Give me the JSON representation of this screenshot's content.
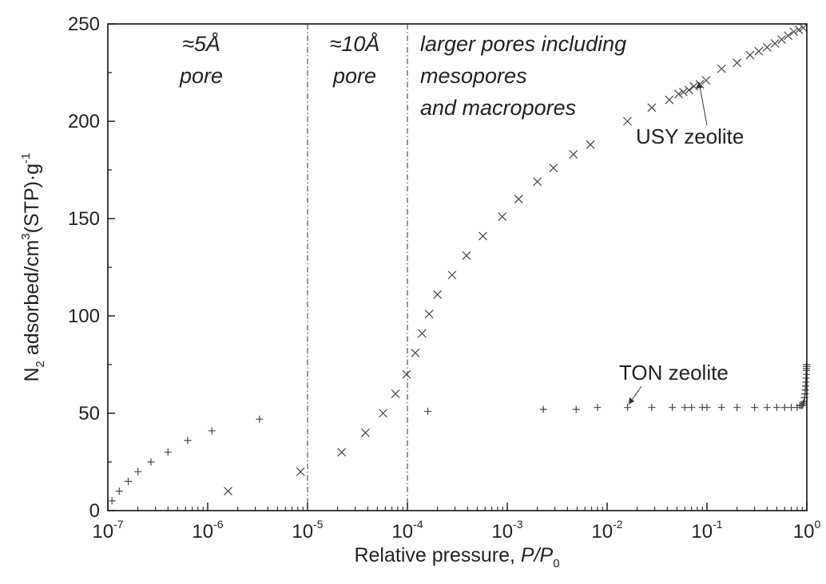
{
  "chart_data": {
    "type": "scatter",
    "title": "",
    "xlabel": "Relative pressure, P/P0",
    "xlabel_parts": [
      "Relative pressure, ",
      "P/P",
      "0"
    ],
    "ylabel_parts": [
      "N",
      "2",
      " adsorbed/cm",
      "3",
      "(STP)·g",
      "-1"
    ],
    "x_scale": "log",
    "xlim": [
      1e-07,
      1
    ],
    "ylim": [
      0,
      250
    ],
    "grid": false,
    "x_ticks": [
      {
        "base": "10",
        "exp": "-7",
        "value": 1e-07
      },
      {
        "base": "10",
        "exp": "-6",
        "value": 1e-06
      },
      {
        "base": "10",
        "exp": "-5",
        "value": 1e-05
      },
      {
        "base": "10",
        "exp": "-4",
        "value": 0.0001
      },
      {
        "base": "10",
        "exp": "-3",
        "value": 0.001
      },
      {
        "base": "10",
        "exp": "-2",
        "value": 0.01
      },
      {
        "base": "10",
        "exp": "-1",
        "value": 0.1
      },
      {
        "base": "10",
        "exp": "0",
        "value": 1
      }
    ],
    "y_ticks": [
      {
        "label": "0",
        "value": 0
      },
      {
        "label": "50",
        "value": 50
      },
      {
        "label": "100",
        "value": 100
      },
      {
        "label": "150",
        "value": 150
      },
      {
        "label": "200",
        "value": 200
      },
      {
        "label": "250",
        "value": 250
      }
    ],
    "vlines": [
      1e-05,
      0.0001
    ],
    "region_labels": [
      {
        "lines": [
          "≈5Å",
          "pore"
        ]
      },
      {
        "lines": [
          "≈10Å",
          "pore"
        ]
      },
      {
        "lines": [
          "larger pores including",
          "mesopores",
          "and macropores"
        ]
      }
    ],
    "series": [
      {
        "name": "USY zeolite",
        "marker": "x",
        "x": [
          1.6e-06,
          8.5e-06,
          2.2e-05,
          3.8e-05,
          5.7e-05,
          7.6e-05,
          9.8e-05,
          0.00012,
          0.00014,
          0.000165,
          0.0002,
          0.00028,
          0.00039,
          0.00057,
          0.00089,
          0.0013,
          0.002,
          0.0029,
          0.0046,
          0.0068,
          0.016,
          0.028,
          0.042,
          0.052,
          0.058,
          0.066,
          0.074,
          0.085,
          0.098,
          0.14,
          0.2,
          0.27,
          0.33,
          0.4,
          0.48,
          0.56,
          0.65,
          0.74,
          0.83,
          0.92
        ],
        "y": [
          10,
          20,
          30,
          40,
          50,
          60,
          70,
          81,
          91,
          101,
          111,
          121,
          131,
          141,
          151,
          160,
          169,
          176,
          183,
          188,
          200,
          207,
          211,
          214,
          215,
          216,
          218,
          219,
          221,
          227,
          230,
          234,
          236,
          238,
          240,
          242,
          244,
          246,
          247,
          248
        ]
      },
      {
        "name": "TON zeolite",
        "marker": "+",
        "x": [
          1.1e-07,
          1.3e-07,
          1.6e-07,
          2e-07,
          2.7e-07,
          4e-07,
          6.3e-07,
          1.1e-06,
          3.3e-06,
          0.00016,
          0.0023,
          0.0049,
          0.008,
          0.016,
          0.028,
          0.045,
          0.06,
          0.07,
          0.09,
          0.1,
          0.14,
          0.2,
          0.3,
          0.4,
          0.5,
          0.6,
          0.7,
          0.8,
          0.85,
          0.88,
          0.9,
          0.92,
          0.94,
          0.95,
          0.96,
          0.965,
          0.97,
          0.975,
          0.98,
          0.985,
          0.99,
          0.993,
          0.996,
          0.998
        ],
        "y": [
          5,
          10,
          15,
          20,
          25,
          30,
          36,
          41,
          47,
          51,
          52,
          52,
          53,
          53,
          53,
          53,
          53,
          53,
          53,
          53,
          53,
          53,
          53,
          53,
          53,
          53,
          53,
          53,
          54,
          54,
          54,
          55,
          56,
          58,
          60,
          62,
          64,
          66,
          68,
          70,
          72,
          73,
          74,
          75
        ]
      }
    ],
    "annotations": [
      {
        "text": "USY zeolite"
      },
      {
        "text": "TON zeolite"
      }
    ]
  }
}
